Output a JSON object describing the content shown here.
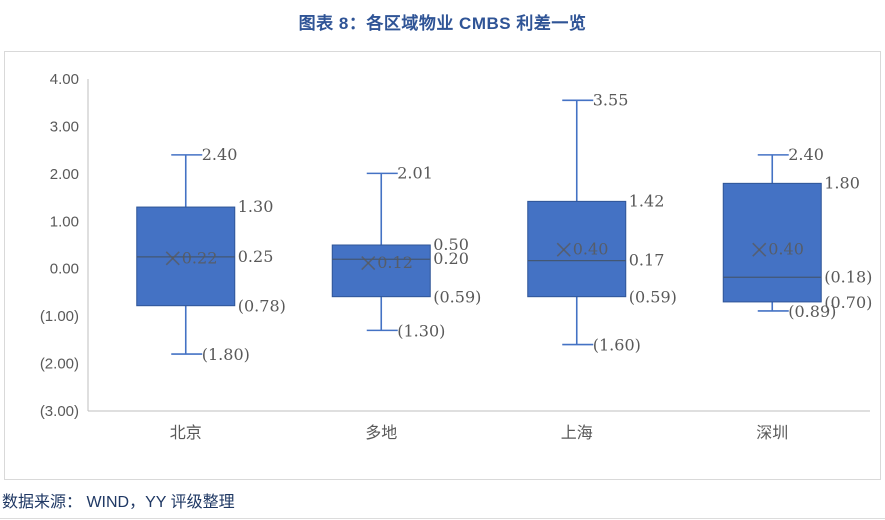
{
  "chart_data": {
    "type": "box",
    "title": "图表 8：各区域物业 CMBS 利差一览",
    "source": "数据来源： WIND，YY 评级整理",
    "xlabel": "",
    "ylabel": "",
    "ylim": [
      -3,
      4
    ],
    "grid": false,
    "legend_position": "none",
    "yticks": [
      {
        "value": 4,
        "label": "4.00"
      },
      {
        "value": 3,
        "label": "3.00"
      },
      {
        "value": 2,
        "label": "2.00"
      },
      {
        "value": 1,
        "label": "1.00"
      },
      {
        "value": 0,
        "label": "0.00"
      },
      {
        "value": -1,
        "label": "(1.00)"
      },
      {
        "value": -2,
        "label": "(2.00)"
      },
      {
        "value": -3,
        "label": "(3.00)"
      }
    ],
    "categories": [
      "北京",
      "多地",
      "上海",
      "深圳"
    ],
    "series": [
      {
        "category": "北京",
        "min": -1.8,
        "q1": -0.78,
        "median": 0.25,
        "mean": 0.22,
        "q3": 1.3,
        "max": 2.4,
        "labels": {
          "min": "(1.80)",
          "q1": "(0.78)",
          "median": "0.25",
          "mean": "0.22",
          "q3": "1.30",
          "max": "2.40"
        }
      },
      {
        "category": "多地",
        "min": -1.3,
        "q1": -0.59,
        "median": 0.2,
        "mean": 0.12,
        "q3": 0.5,
        "max": 2.01,
        "labels": {
          "min": "(1.30)",
          "q1": "(0.59)",
          "median": "0.20",
          "mean": "0.12",
          "q3": "0.50",
          "max": "2.01"
        }
      },
      {
        "category": "上海",
        "min": -1.6,
        "q1": -0.59,
        "median": 0.17,
        "mean": 0.4,
        "q3": 1.42,
        "max": 3.55,
        "labels": {
          "min": "(1.60)",
          "q1": "(0.59)",
          "median": "0.17",
          "mean": "0.40",
          "q3": "1.42",
          "max": "3.55"
        }
      },
      {
        "category": "深圳",
        "min": -0.89,
        "q1": -0.7,
        "median": -0.18,
        "mean": 0.4,
        "q3": 1.8,
        "max": 2.4,
        "labels": {
          "min": "(0.89)",
          "q1": "(0.70)",
          "median": "(0.18)",
          "mean": "0.40",
          "q3": "1.80",
          "max": "2.40"
        }
      }
    ],
    "colors": {
      "box_fill": "#4472C4",
      "box_border": "#2F5597",
      "whisker": "#4472C4",
      "median_line": "#44546A",
      "mean_marker": "#595959",
      "data_label": "#595959",
      "axis_label": "#595959",
      "axis_line": "#BFBFBF",
      "title": "#2F5496",
      "source": "#1F3864",
      "frame_border": "#D9D9D9"
    }
  }
}
